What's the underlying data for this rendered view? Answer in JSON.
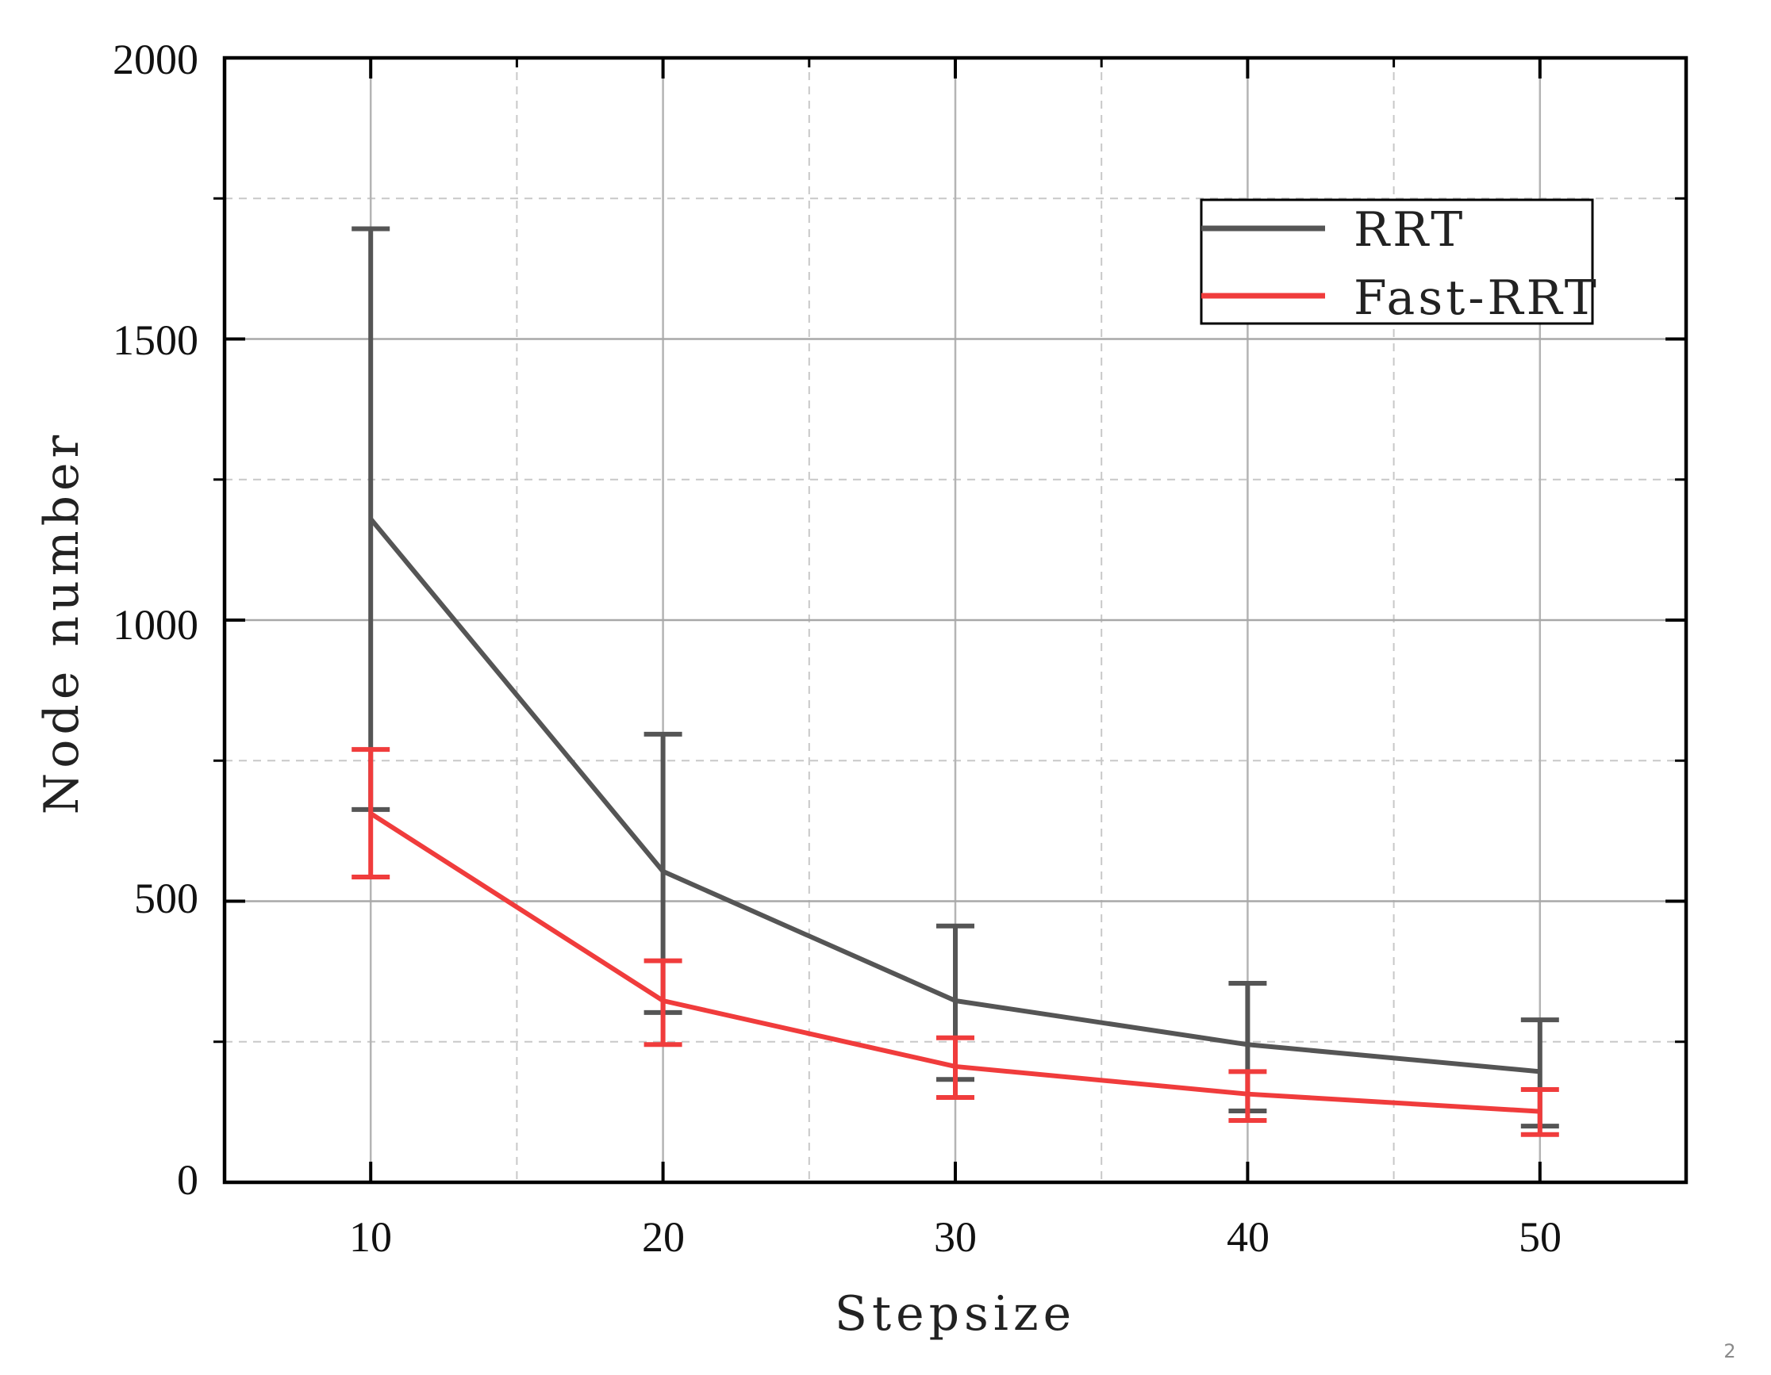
{
  "chart_data": {
    "type": "line",
    "title": "",
    "xlabel": "Stepsize",
    "ylabel": "Node number",
    "x": [
      10,
      20,
      30,
      40,
      50
    ],
    "xlim": [
      5,
      55
    ],
    "ylim": [
      0,
      2000
    ],
    "xticks": [
      10,
      20,
      30,
      40,
      50
    ],
    "yticks": [
      0,
      500,
      1000,
      1500,
      2000
    ],
    "x_minor_grid": [
      15,
      25,
      35,
      45
    ],
    "y_minor_grid": [
      250,
      750,
      1250,
      1750
    ],
    "grid": true,
    "error_bars": true,
    "legend_position": "upper right",
    "series": [
      {
        "name": "RRT",
        "color": "#555555",
        "values": [
          1180,
          553,
          323,
          245,
          197
        ],
        "upper": [
          1696,
          797,
          456,
          354,
          289
        ],
        "lower": [
          663,
          302,
          183,
          127,
          100
        ]
      },
      {
        "name": "Fast-RRT",
        "color": "#F03C3C",
        "values": [
          656,
          323,
          206,
          157,
          126
        ],
        "upper": [
          770,
          394,
          257,
          197,
          165
        ],
        "lower": [
          543,
          245,
          151,
          110,
          85
        ]
      }
    ]
  },
  "axes": {
    "x_title": "Stepsize",
    "y_title": "Node number",
    "x_tick_labels": [
      "10",
      "20",
      "30",
      "40",
      "50"
    ],
    "y_tick_labels": [
      "0",
      "500",
      "1000",
      "1500",
      "2000"
    ]
  },
  "legend": {
    "items": [
      {
        "label": "RRT",
        "color": "#555555"
      },
      {
        "label": "Fast-RRT",
        "color": "#F03C3C"
      }
    ]
  },
  "page_number": "2"
}
